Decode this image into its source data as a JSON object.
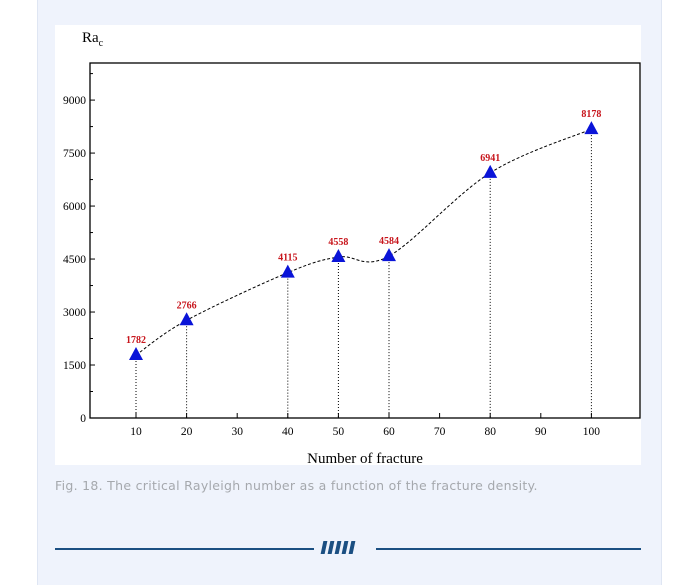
{
  "chart_data": {
    "type": "line",
    "ylabel": "Ra",
    "ylabel_sub": "c",
    "xlabel": "Number of fracture",
    "categories": [
      "10",
      "20",
      "30",
      "40",
      "50",
      "60",
      "70",
      "80",
      "90",
      "100"
    ],
    "x": [
      10,
      20,
      40,
      50,
      60,
      80,
      100
    ],
    "values": [
      1782,
      2766,
      4115,
      4558,
      4584,
      6941,
      8178
    ],
    "data_labels": [
      "1782",
      "2766",
      "4115",
      "4558",
      "4584",
      "6941",
      "8178"
    ],
    "yticks": [
      "0",
      "1500",
      "3000",
      "4500",
      "6000",
      "7500",
      "9000"
    ],
    "ylim": [
      0,
      10050
    ],
    "marker": "triangle",
    "marker_color": "#0a14d8",
    "label_color": "#c8161d",
    "line_style": "dashed smooth",
    "drop_lines": true,
    "grid": false
  },
  "caption": "Fig. 18. The critical Rayleigh number as a function of the fracture density.",
  "divider_color": "#1b4f82"
}
